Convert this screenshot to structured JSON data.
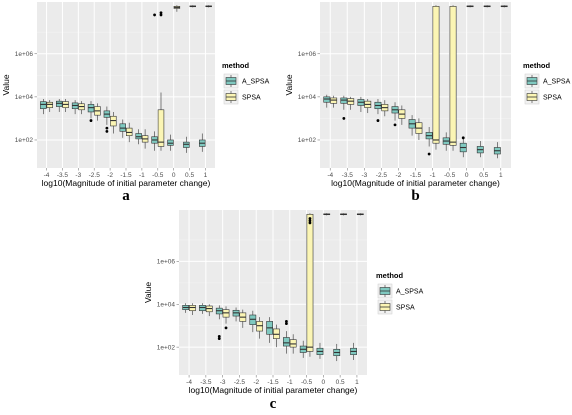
{
  "colors": {
    "A_SPSA": "#7fc9c0",
    "SPSA": "#fbf5b4",
    "panel_bg": "#ebebeb",
    "grid_major": "#ffffff",
    "grid_minor": "#f4f4f4",
    "outline": "#333333"
  },
  "legend": {
    "title": "method",
    "entries": [
      "A_SPSA",
      "SPSA"
    ]
  },
  "chart_data": [
    {
      "type": "boxplot",
      "panel_label": "a",
      "xlabel": "log10(Magnitude of initial parameter change)",
      "ylabel": "Value",
      "x_ticks": [
        "-4",
        "-3.5",
        "-3",
        "-2.5",
        "-2",
        "-1.5",
        "-1",
        "-0.5",
        "0",
        "0.5",
        "1"
      ],
      "y_ticks": [
        "1e+02",
        "1e+04",
        "1e+06"
      ],
      "y_scale": "log10",
      "ylim_log10": [
        0.7,
        8.4
      ],
      "series": [
        {
          "name": "A_SPSA",
          "boxes": [
            {
              "x": -4,
              "q1": 3.45,
              "med": 3.65,
              "q3": 3.78,
              "lo": 3.2,
              "hi": 3.9,
              "out": []
            },
            {
              "x": -3.5,
              "q1": 3.55,
              "med": 3.7,
              "q3": 3.8,
              "lo": 3.3,
              "hi": 3.9,
              "out": []
            },
            {
              "x": -3,
              "q1": 3.45,
              "med": 3.6,
              "q3": 3.72,
              "lo": 3.2,
              "hi": 3.85,
              "out": []
            },
            {
              "x": -2.5,
              "q1": 3.3,
              "med": 3.5,
              "q3": 3.65,
              "lo": 3.0,
              "hi": 3.8,
              "out": [
                2.9
              ]
            },
            {
              "x": -2,
              "q1": 3.05,
              "med": 3.2,
              "q3": 3.35,
              "lo": 2.7,
              "hi": 3.55,
              "out": [
                2.55,
                2.4
              ]
            },
            {
              "x": -1.5,
              "q1": 2.4,
              "med": 2.55,
              "q3": 2.75,
              "lo": 2.1,
              "hi": 2.95,
              "out": []
            },
            {
              "x": -1,
              "q1": 2.05,
              "med": 2.15,
              "q3": 2.3,
              "lo": 1.8,
              "hi": 2.5,
              "out": []
            },
            {
              "x": -0.5,
              "q1": 1.85,
              "med": 2.0,
              "q3": 2.15,
              "lo": 1.5,
              "hi": 2.4,
              "out": [
                7.8
              ]
            },
            {
              "x": 0,
              "q1": 1.75,
              "med": 1.85,
              "q3": 2.0,
              "lo": 1.5,
              "hi": 2.25,
              "out": []
            },
            {
              "x": 0.5,
              "q1": 1.65,
              "med": 1.8,
              "q3": 1.9,
              "lo": 1.4,
              "hi": 2.15,
              "out": []
            },
            {
              "x": 1,
              "q1": 1.7,
              "med": 1.85,
              "q3": 2.0,
              "lo": 1.45,
              "hi": 2.3,
              "out": []
            }
          ]
        },
        {
          "name": "SPSA",
          "boxes": [
            {
              "x": -4,
              "q1": 3.5,
              "med": 3.65,
              "q3": 3.75,
              "lo": 3.3,
              "hi": 3.85,
              "out": []
            },
            {
              "x": -3.5,
              "q1": 3.5,
              "med": 3.65,
              "q3": 3.78,
              "lo": 3.3,
              "hi": 3.9,
              "out": []
            },
            {
              "x": -3,
              "q1": 3.4,
              "med": 3.55,
              "q3": 3.68,
              "lo": 3.2,
              "hi": 3.8,
              "out": []
            },
            {
              "x": -2.5,
              "q1": 3.15,
              "med": 3.35,
              "q3": 3.55,
              "lo": 2.9,
              "hi": 3.7,
              "out": []
            },
            {
              "x": -2,
              "q1": 2.65,
              "med": 2.9,
              "q3": 3.1,
              "lo": 2.3,
              "hi": 3.3,
              "out": []
            },
            {
              "x": -1.5,
              "q1": 2.2,
              "med": 2.35,
              "q3": 2.55,
              "lo": 1.9,
              "hi": 2.8,
              "out": []
            },
            {
              "x": -1,
              "q1": 1.9,
              "med": 2.05,
              "q3": 2.2,
              "lo": 1.6,
              "hi": 2.5,
              "out": []
            },
            {
              "x": -0.5,
              "q1": 1.7,
              "med": 1.9,
              "q3": 3.4,
              "lo": 1.5,
              "hi": 4.2,
              "out": [
                7.8,
                7.9
              ]
            },
            {
              "x": 0,
              "q1": 8.1,
              "med": 8.15,
              "q3": 8.2,
              "lo": 7.95,
              "hi": 8.25,
              "out": []
            },
            {
              "x": 0.5,
              "q1": 8.18,
              "med": 8.2,
              "q3": 8.22,
              "lo": 8.15,
              "hi": 8.25,
              "out": []
            },
            {
              "x": 1,
              "q1": 8.18,
              "med": 8.2,
              "q3": 8.22,
              "lo": 8.15,
              "hi": 8.25,
              "out": []
            }
          ]
        }
      ]
    },
    {
      "type": "boxplot",
      "panel_label": "b",
      "xlabel": "log10(Magnitude of initial parameter change)",
      "ylabel": "Value",
      "x_ticks": [
        "-4",
        "-3.5",
        "-3",
        "-2.5",
        "-2",
        "-1.5",
        "-1",
        "-0.5",
        "0",
        "0.5",
        "1"
      ],
      "y_ticks": [
        "1e+02",
        "1e+04",
        "1e+06"
      ],
      "y_scale": "log10",
      "ylim_log10": [
        0.7,
        8.4
      ],
      "series": [
        {
          "name": "A_SPSA",
          "boxes": [
            {
              "x": -4,
              "q1": 3.75,
              "med": 3.9,
              "q3": 4.0,
              "lo": 3.5,
              "hi": 4.1,
              "out": []
            },
            {
              "x": -3.5,
              "q1": 3.7,
              "med": 3.85,
              "q3": 3.95,
              "lo": 3.4,
              "hi": 4.05,
              "out": [
                3.0
              ]
            },
            {
              "x": -3,
              "q1": 3.6,
              "med": 3.75,
              "q3": 3.88,
              "lo": 3.3,
              "hi": 4.0,
              "out": []
            },
            {
              "x": -2.5,
              "q1": 3.45,
              "med": 3.6,
              "q3": 3.75,
              "lo": 3.2,
              "hi": 3.9,
              "out": [
                2.9
              ]
            },
            {
              "x": -2,
              "q1": 3.25,
              "med": 3.4,
              "q3": 3.55,
              "lo": 2.9,
              "hi": 3.75,
              "out": [
                2.7
              ]
            },
            {
              "x": -1.5,
              "q1": 2.55,
              "med": 2.75,
              "q3": 2.95,
              "lo": 2.2,
              "hi": 3.15,
              "out": []
            },
            {
              "x": -1,
              "q1": 2.05,
              "med": 2.2,
              "q3": 2.35,
              "lo": 1.7,
              "hi": 2.6,
              "out": [
                1.35
              ]
            },
            {
              "x": -0.5,
              "q1": 1.8,
              "med": 1.95,
              "q3": 2.1,
              "lo": 1.5,
              "hi": 2.35,
              "out": []
            },
            {
              "x": 0,
              "q1": 1.45,
              "med": 1.65,
              "q3": 1.85,
              "lo": 1.2,
              "hi": 2.1,
              "out": [
                2.1
              ]
            },
            {
              "x": 0.5,
              "q1": 1.4,
              "med": 1.55,
              "q3": 1.7,
              "lo": 1.2,
              "hi": 1.95,
              "out": []
            },
            {
              "x": 1,
              "q1": 1.35,
              "med": 1.5,
              "q3": 1.65,
              "lo": 1.15,
              "hi": 1.9,
              "out": []
            }
          ]
        },
        {
          "name": "SPSA",
          "boxes": [
            {
              "x": -4,
              "q1": 3.7,
              "med": 3.85,
              "q3": 3.95,
              "lo": 3.5,
              "hi": 4.05,
              "out": []
            },
            {
              "x": -3.5,
              "q1": 3.65,
              "med": 3.8,
              "q3": 3.92,
              "lo": 3.4,
              "hi": 4.0,
              "out": []
            },
            {
              "x": -3,
              "q1": 3.5,
              "med": 3.65,
              "q3": 3.8,
              "lo": 3.25,
              "hi": 3.9,
              "out": []
            },
            {
              "x": -2.5,
              "q1": 3.35,
              "med": 3.5,
              "q3": 3.65,
              "lo": 3.1,
              "hi": 3.85,
              "out": []
            },
            {
              "x": -2,
              "q1": 3.0,
              "med": 3.2,
              "q3": 3.4,
              "lo": 2.7,
              "hi": 3.6,
              "out": []
            },
            {
              "x": -1.5,
              "q1": 2.3,
              "med": 2.55,
              "q3": 2.8,
              "lo": 2.0,
              "hi": 3.0,
              "out": []
            },
            {
              "x": -1,
              "q1": 1.85,
              "med": 2.0,
              "q3": 8.2,
              "lo": 1.55,
              "hi": 8.25,
              "out": []
            },
            {
              "x": -0.5,
              "q1": 1.75,
              "med": 1.9,
              "q3": 8.2,
              "lo": 1.5,
              "hi": 8.25,
              "out": []
            },
            {
              "x": 0,
              "q1": 8.18,
              "med": 8.2,
              "q3": 8.22,
              "lo": 8.15,
              "hi": 8.25,
              "out": []
            },
            {
              "x": 0.5,
              "q1": 8.18,
              "med": 8.2,
              "q3": 8.22,
              "lo": 8.15,
              "hi": 8.25,
              "out": []
            },
            {
              "x": 1,
              "q1": 8.18,
              "med": 8.2,
              "q3": 8.22,
              "lo": 8.15,
              "hi": 8.25,
              "out": []
            }
          ]
        }
      ]
    },
    {
      "type": "boxplot",
      "panel_label": "c",
      "xlabel": "log10(Magnitude of initial parameter change)",
      "ylabel": "Value",
      "x_ticks": [
        "-4",
        "-3.5",
        "-3",
        "-2.5",
        "-2",
        "-1.5",
        "-1",
        "-0.5",
        "0",
        "0.5",
        "1"
      ],
      "y_ticks": [
        "1e+02",
        "1e+04",
        "1e+06"
      ],
      "y_scale": "log10",
      "ylim_log10": [
        0.7,
        8.4
      ],
      "series": [
        {
          "name": "A_SPSA",
          "boxes": [
            {
              "x": -4,
              "q1": 3.75,
              "med": 3.85,
              "q3": 3.95,
              "lo": 3.6,
              "hi": 4.05,
              "out": []
            },
            {
              "x": -3.5,
              "q1": 3.7,
              "med": 3.85,
              "q3": 3.95,
              "lo": 3.55,
              "hi": 4.05,
              "out": []
            },
            {
              "x": -3,
              "q1": 3.55,
              "med": 3.7,
              "q3": 3.82,
              "lo": 3.3,
              "hi": 3.95,
              "out": [
                2.5,
                2.4
              ]
            },
            {
              "x": -2.5,
              "q1": 3.45,
              "med": 3.6,
              "q3": 3.72,
              "lo": 3.2,
              "hi": 3.85,
              "out": []
            },
            {
              "x": -2,
              "q1": 3.05,
              "med": 3.3,
              "q3": 3.5,
              "lo": 2.7,
              "hi": 3.7,
              "out": []
            },
            {
              "x": -1.5,
              "q1": 2.6,
              "med": 2.9,
              "q3": 3.2,
              "lo": 2.2,
              "hi": 3.4,
              "out": []
            },
            {
              "x": -1,
              "q1": 2.05,
              "med": 2.2,
              "q3": 2.45,
              "lo": 1.7,
              "hi": 2.75,
              "out": [
                3.2,
                3.1
              ]
            },
            {
              "x": -0.5,
              "q1": 1.75,
              "med": 1.9,
              "q3": 2.05,
              "lo": 1.5,
              "hi": 2.3,
              "out": []
            },
            {
              "x": 0,
              "q1": 1.65,
              "med": 1.8,
              "q3": 1.95,
              "lo": 1.45,
              "hi": 2.2,
              "out": []
            },
            {
              "x": 0.5,
              "q1": 1.6,
              "med": 1.75,
              "q3": 1.9,
              "lo": 1.35,
              "hi": 2.15,
              "out": []
            },
            {
              "x": 1,
              "q1": 1.65,
              "med": 1.8,
              "q3": 1.95,
              "lo": 1.4,
              "hi": 2.2,
              "out": []
            }
          ]
        },
        {
          "name": "SPSA",
          "boxes": [
            {
              "x": -4,
              "q1": 3.7,
              "med": 3.85,
              "q3": 3.95,
              "lo": 3.5,
              "hi": 4.05,
              "out": []
            },
            {
              "x": -3.5,
              "q1": 3.65,
              "med": 3.8,
              "q3": 3.92,
              "lo": 3.45,
              "hi": 4.0,
              "out": []
            },
            {
              "x": -3,
              "q1": 3.4,
              "med": 3.6,
              "q3": 3.75,
              "lo": 3.1,
              "hi": 3.9,
              "out": [
                2.9
              ]
            },
            {
              "x": -2.5,
              "q1": 3.2,
              "med": 3.4,
              "q3": 3.6,
              "lo": 2.9,
              "hi": 3.75,
              "out": []
            },
            {
              "x": -2,
              "q1": 2.75,
              "med": 3.0,
              "q3": 3.2,
              "lo": 2.4,
              "hi": 3.4,
              "out": []
            },
            {
              "x": -1.5,
              "q1": 2.4,
              "med": 2.6,
              "q3": 2.85,
              "lo": 2.0,
              "hi": 3.05,
              "out": []
            },
            {
              "x": -1,
              "q1": 2.0,
              "med": 2.15,
              "q3": 2.35,
              "lo": 1.7,
              "hi": 2.6,
              "out": []
            },
            {
              "x": -0.5,
              "q1": 1.8,
              "med": 2.0,
              "q3": 8.2,
              "lo": 1.55,
              "hi": 8.25,
              "out": [
                8.0,
                7.9,
                7.8
              ]
            },
            {
              "x": 0,
              "q1": 8.18,
              "med": 8.2,
              "q3": 8.22,
              "lo": 8.15,
              "hi": 8.25,
              "out": []
            },
            {
              "x": 0.5,
              "q1": 8.18,
              "med": 8.2,
              "q3": 8.22,
              "lo": 8.15,
              "hi": 8.25,
              "out": []
            },
            {
              "x": 1,
              "q1": 8.18,
              "med": 8.2,
              "q3": 8.22,
              "lo": 8.15,
              "hi": 8.25,
              "out": []
            }
          ]
        }
      ]
    }
  ]
}
